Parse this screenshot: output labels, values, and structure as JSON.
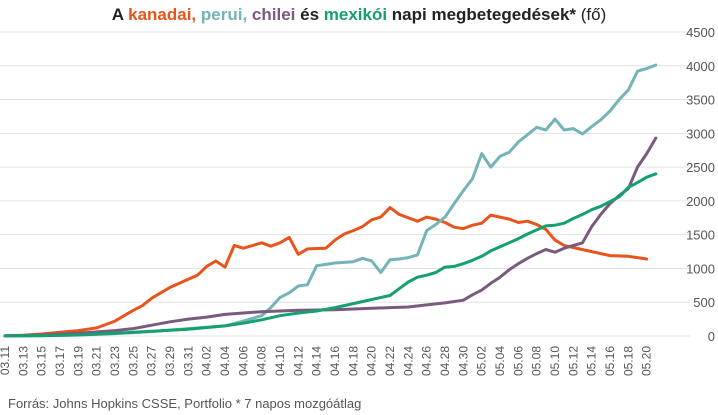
{
  "chart_data": {
    "type": "line",
    "title_parts": {
      "prefix": "A ",
      "canada": "kanadai,",
      "sep1": " ",
      "peru": "perui,",
      "sep2": " ",
      "chile": "chilei",
      "mid": " és ",
      "mexico": "mexikói",
      "suffix": " napi megbetegedések*",
      "unit": " (fő)"
    },
    "source": "Forrás: Johns Hopkins CSSE, Portfolio   * 7 napos mozgóátlag",
    "ylim": [
      0,
      4500
    ],
    "y_ticks": [
      "0",
      "500",
      "1000",
      "1500",
      "2000",
      "2500",
      "3000",
      "3500",
      "4000",
      "4500"
    ],
    "y_tick_values": [
      0,
      500,
      1000,
      1500,
      2000,
      2500,
      3000,
      3500,
      4000,
      4500
    ],
    "x_tick_labels": [
      "03.11",
      "03.13",
      "03.15",
      "03.17",
      "03.19",
      "03.21",
      "03.23",
      "03.25",
      "03.27",
      "03.29",
      "03.31",
      "04.02",
      "04.04",
      "04.06",
      "04.08",
      "04.10",
      "04.12",
      "04.14",
      "04.16",
      "04.18",
      "04.20",
      "04.22",
      "04.24",
      "04.26",
      "04.28",
      "04.30",
      "05.02",
      "05.04",
      "05.06",
      "05.08",
      "05.10",
      "05.12",
      "05.14",
      "05.16",
      "05.18",
      "05.20"
    ],
    "x_tick_days": [
      0,
      2,
      4,
      6,
      8,
      10,
      12,
      14,
      16,
      18,
      20,
      22,
      24,
      26,
      28,
      30,
      32,
      34,
      36,
      38,
      40,
      42,
      44,
      46,
      48,
      50,
      52,
      54,
      56,
      58,
      60,
      62,
      64,
      66,
      68,
      70
    ],
    "x_range_days": [
      0,
      72
    ],
    "grid": true,
    "colors": {
      "canada": "#e8541c",
      "peru": "#74b3b7",
      "chile": "#7a5a7e",
      "mexico": "#14a06f",
      "grid": "#e3e3e3",
      "tick_text": "#555555"
    },
    "series": [
      {
        "key": "canada",
        "points": [
          [
            0,
            3
          ],
          [
            2,
            12
          ],
          [
            4,
            30
          ],
          [
            6,
            55
          ],
          [
            8,
            80
          ],
          [
            10,
            120
          ],
          [
            12,
            220
          ],
          [
            14,
            380
          ],
          [
            15,
            450
          ],
          [
            16,
            560
          ],
          [
            18,
            720
          ],
          [
            20,
            840
          ],
          [
            21,
            900
          ],
          [
            22,
            1030
          ],
          [
            23,
            1110
          ],
          [
            24,
            1020
          ],
          [
            25,
            1340
          ],
          [
            26,
            1300
          ],
          [
            28,
            1380
          ],
          [
            29,
            1330
          ],
          [
            30,
            1380
          ],
          [
            31,
            1460
          ],
          [
            32,
            1210
          ],
          [
            33,
            1290
          ],
          [
            35,
            1300
          ],
          [
            36,
            1420
          ],
          [
            37,
            1510
          ],
          [
            38,
            1560
          ],
          [
            39,
            1620
          ],
          [
            40,
            1720
          ],
          [
            41,
            1760
          ],
          [
            42,
            1900
          ],
          [
            43,
            1800
          ],
          [
            44,
            1750
          ],
          [
            45,
            1700
          ],
          [
            46,
            1760
          ],
          [
            47,
            1730
          ],
          [
            48,
            1680
          ],
          [
            49,
            1610
          ],
          [
            50,
            1590
          ],
          [
            51,
            1640
          ],
          [
            52,
            1670
          ],
          [
            53,
            1790
          ],
          [
            54,
            1760
          ],
          [
            55,
            1730
          ],
          [
            56,
            1680
          ],
          [
            57,
            1700
          ],
          [
            58,
            1650
          ],
          [
            59,
            1580
          ],
          [
            60,
            1420
          ],
          [
            61,
            1340
          ],
          [
            62,
            1310
          ],
          [
            64,
            1250
          ],
          [
            66,
            1190
          ],
          [
            68,
            1180
          ],
          [
            70,
            1140
          ]
        ]
      },
      {
        "key": "peru",
        "points": [
          [
            0,
            2
          ],
          [
            4,
            6
          ],
          [
            8,
            15
          ],
          [
            12,
            35
          ],
          [
            16,
            65
          ],
          [
            20,
            110
          ],
          [
            24,
            150
          ],
          [
            26,
            220
          ],
          [
            28,
            300
          ],
          [
            29,
            420
          ],
          [
            30,
            570
          ],
          [
            31,
            640
          ],
          [
            32,
            740
          ],
          [
            33,
            760
          ],
          [
            34,
            1040
          ],
          [
            35,
            1060
          ],
          [
            36,
            1080
          ],
          [
            37,
            1090
          ],
          [
            38,
            1100
          ],
          [
            39,
            1150
          ],
          [
            40,
            1110
          ],
          [
            41,
            940
          ],
          [
            42,
            1130
          ],
          [
            43,
            1140
          ],
          [
            44,
            1160
          ],
          [
            45,
            1200
          ],
          [
            46,
            1560
          ],
          [
            47,
            1650
          ],
          [
            48,
            1760
          ],
          [
            49,
            1960
          ],
          [
            50,
            2150
          ],
          [
            51,
            2330
          ],
          [
            52,
            2700
          ],
          [
            53,
            2500
          ],
          [
            54,
            2660
          ],
          [
            55,
            2720
          ],
          [
            56,
            2870
          ],
          [
            57,
            2980
          ],
          [
            58,
            3090
          ],
          [
            59,
            3050
          ],
          [
            60,
            3210
          ],
          [
            61,
            3050
          ],
          [
            62,
            3070
          ],
          [
            63,
            2990
          ],
          [
            64,
            3100
          ],
          [
            65,
            3200
          ],
          [
            66,
            3330
          ],
          [
            67,
            3500
          ],
          [
            68,
            3640
          ],
          [
            69,
            3920
          ],
          [
            70,
            3960
          ],
          [
            71,
            4010
          ]
        ]
      },
      {
        "key": "chile",
        "points": [
          [
            0,
            2
          ],
          [
            4,
            15
          ],
          [
            8,
            40
          ],
          [
            12,
            80
          ],
          [
            14,
            110
          ],
          [
            16,
            160
          ],
          [
            18,
            210
          ],
          [
            20,
            250
          ],
          [
            22,
            280
          ],
          [
            24,
            320
          ],
          [
            26,
            340
          ],
          [
            28,
            360
          ],
          [
            30,
            370
          ],
          [
            32,
            380
          ],
          [
            34,
            385
          ],
          [
            36,
            390
          ],
          [
            38,
            400
          ],
          [
            40,
            410
          ],
          [
            42,
            420
          ],
          [
            44,
            430
          ],
          [
            46,
            460
          ],
          [
            48,
            490
          ],
          [
            50,
            530
          ],
          [
            51,
            610
          ],
          [
            52,
            680
          ],
          [
            53,
            780
          ],
          [
            54,
            870
          ],
          [
            55,
            980
          ],
          [
            56,
            1070
          ],
          [
            57,
            1150
          ],
          [
            58,
            1220
          ],
          [
            59,
            1280
          ],
          [
            60,
            1240
          ],
          [
            61,
            1300
          ],
          [
            62,
            1340
          ],
          [
            63,
            1380
          ],
          [
            64,
            1620
          ],
          [
            65,
            1800
          ],
          [
            66,
            1960
          ],
          [
            67,
            2080
          ],
          [
            68,
            2180
          ],
          [
            69,
            2500
          ],
          [
            70,
            2700
          ],
          [
            71,
            2930
          ]
        ]
      },
      {
        "key": "mexico",
        "points": [
          [
            0,
            1
          ],
          [
            4,
            5
          ],
          [
            8,
            15
          ],
          [
            12,
            40
          ],
          [
            16,
            70
          ],
          [
            20,
            100
          ],
          [
            24,
            150
          ],
          [
            26,
            190
          ],
          [
            28,
            240
          ],
          [
            30,
            300
          ],
          [
            32,
            340
          ],
          [
            34,
            370
          ],
          [
            36,
            420
          ],
          [
            38,
            480
          ],
          [
            40,
            540
          ],
          [
            42,
            600
          ],
          [
            43,
            700
          ],
          [
            44,
            800
          ],
          [
            45,
            870
          ],
          [
            46,
            900
          ],
          [
            47,
            940
          ],
          [
            48,
            1020
          ],
          [
            49,
            1030
          ],
          [
            50,
            1070
          ],
          [
            51,
            1120
          ],
          [
            52,
            1180
          ],
          [
            53,
            1260
          ],
          [
            54,
            1320
          ],
          [
            55,
            1380
          ],
          [
            56,
            1440
          ],
          [
            57,
            1510
          ],
          [
            58,
            1570
          ],
          [
            59,
            1630
          ],
          [
            60,
            1640
          ],
          [
            61,
            1670
          ],
          [
            62,
            1740
          ],
          [
            63,
            1800
          ],
          [
            64,
            1870
          ],
          [
            65,
            1920
          ],
          [
            66,
            1990
          ],
          [
            67,
            2060
          ],
          [
            68,
            2200
          ],
          [
            69,
            2270
          ],
          [
            70,
            2350
          ],
          [
            71,
            2400
          ]
        ]
      }
    ]
  }
}
